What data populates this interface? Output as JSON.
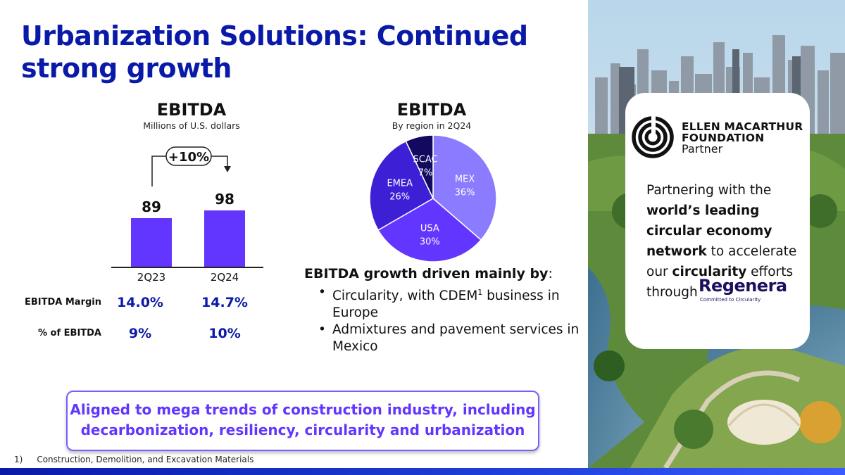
{
  "title": "Urbanization Solutions: Continued strong growth",
  "bar_chart": {
    "heading": "EBITDA",
    "subheading": "Millions of U.S. dollars",
    "growth_label": "+10%"
  },
  "pie_chart": {
    "heading": "EBITDA",
    "subheading": "By region in 2Q24"
  },
  "metrics": {
    "rows": [
      {
        "label": "EBITDA Margin",
        "values": [
          "14.0%",
          "14.7%"
        ]
      },
      {
        "label": "% of EBITDA",
        "values": [
          "9%",
          "10%"
        ]
      }
    ]
  },
  "growth": {
    "title": "EBITDA growth driven mainly by",
    "title_suffix": ":",
    "bullet1_pre": "Circularity, with CDEM",
    "bullet1_sup": "1",
    "bullet1_post": " business in Europe",
    "bullet2": "Admixtures and pavement services in Mexico"
  },
  "callout": {
    "line1": "Aligned to mega trends of construction industry, including",
    "line2": "decarbonization, resiliency, circularity and urbanization"
  },
  "footnote": {
    "number": "1)",
    "text": "Construction, Demolition, and Excavation Materials"
  },
  "partner_card": {
    "org_line1": "ELLEN MACARTHUR",
    "org_line2": "FOUNDATION",
    "org_line3": "Partner",
    "text_1": "Partnering with the ",
    "text_2": "world’s leading circular economy network",
    "text_3": " to accelerate our ",
    "text_4": "circularity",
    "text_5": " efforts through",
    "regenera": "Regenera",
    "regenera_tag": "Committed to Circularity"
  },
  "chart_data": [
    {
      "type": "bar",
      "title": "EBITDA",
      "subtitle": "Millions of U.S. dollars",
      "categories": [
        "2Q23",
        "2Q24"
      ],
      "values": [
        89,
        98
      ],
      "value_labels": [
        "89",
        "98"
      ],
      "annotation": "+10%",
      "ylim": [
        0,
        100
      ],
      "color": "#6236ff"
    },
    {
      "type": "pie",
      "title": "EBITDA",
      "subtitle": "By region in 2Q24",
      "slices": [
        {
          "label": "MEX",
          "value": 36,
          "pct_label": "36%",
          "color": "#8b7cff"
        },
        {
          "label": "USA",
          "value": 30,
          "pct_label": "30%",
          "color": "#6236ff"
        },
        {
          "label": "EMEA",
          "value": 26,
          "pct_label": "26%",
          "color": "#3d1fd6"
        },
        {
          "label": "SCAC",
          "value": 7,
          "pct_label": "7%",
          "color": "#120a5e"
        }
      ]
    }
  ]
}
